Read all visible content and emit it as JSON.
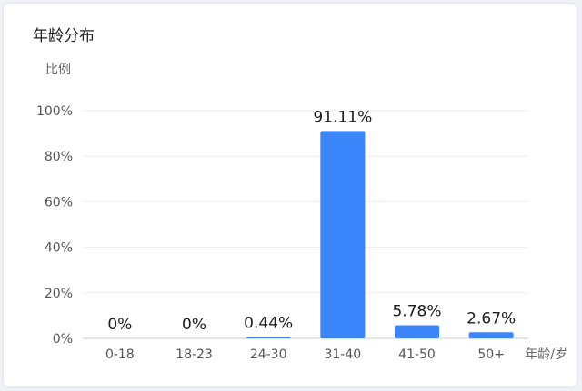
{
  "card": {
    "title": "年龄分布"
  },
  "colors": {
    "bar": "#3a86fa",
    "grid": "#ebedf0",
    "axis": "#c8cbd2",
    "tick_text": "#555555",
    "label_text": "#1c1c1c",
    "axis_title": "#666666"
  },
  "chart_data": {
    "type": "bar",
    "title": "年龄分布",
    "ylabel": "比例",
    "xlabel": "年龄/岁",
    "categories": [
      "0-18",
      "18-23",
      "24-30",
      "31-40",
      "41-50",
      "50+"
    ],
    "values": [
      0,
      0,
      0.44,
      91.11,
      5.78,
      2.67
    ],
    "value_labels": [
      "0%",
      "0%",
      "0.44%",
      "91.11%",
      "5.78%",
      "2.67%"
    ],
    "y_ticks": [
      "0%",
      "20%",
      "40%",
      "60%",
      "80%",
      "100%"
    ],
    "y_tick_values": [
      0,
      20,
      40,
      60,
      80,
      100
    ],
    "ylim": [
      0,
      100
    ],
    "grid": true,
    "legend": "none"
  }
}
